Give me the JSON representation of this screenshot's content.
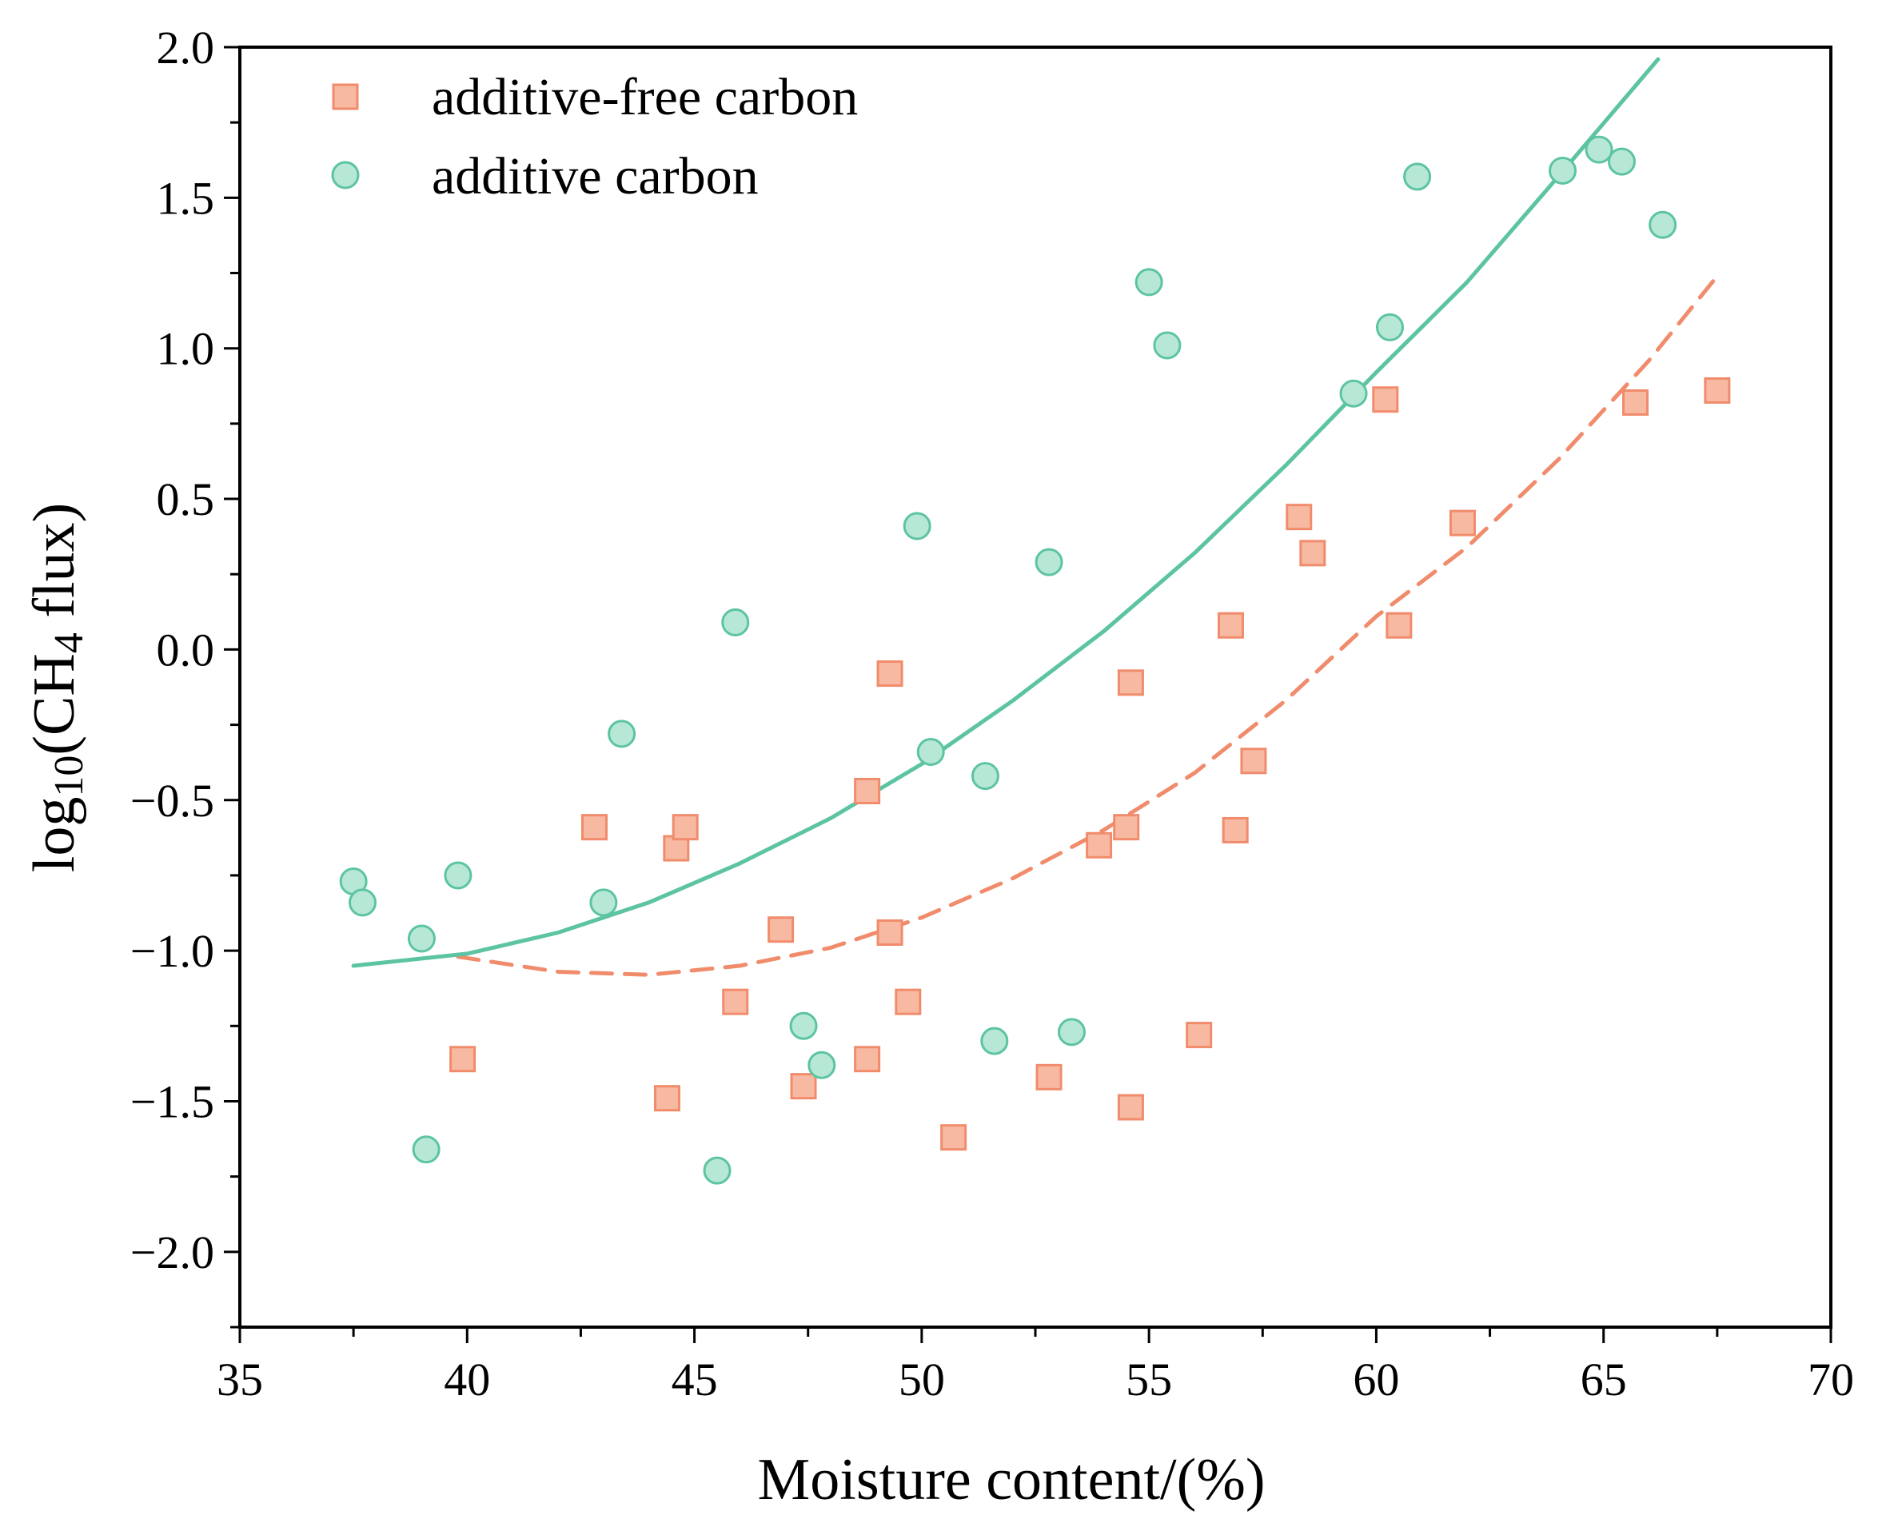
{
  "chart_data": {
    "type": "scatter",
    "title": "",
    "xlabel": "Moisture content/(%)",
    "ylabel": {
      "prefix": "log",
      "sub1": "10",
      "mid": "(CH",
      "sub2": "4",
      "suffix": " flux)"
    },
    "xlim": [
      35,
      70
    ],
    "ylim": [
      -2.25,
      2.0
    ],
    "xticks": [
      35,
      40,
      45,
      50,
      55,
      60,
      65,
      70
    ],
    "xtick_labels": [
      "35",
      "40",
      "45",
      "50",
      "55",
      "60",
      "65",
      "70"
    ],
    "yticks": [
      -2.0,
      -1.5,
      -1.0,
      -0.5,
      0.0,
      0.5,
      1.0,
      1.5,
      2.0
    ],
    "ytick_labels": [
      "−2.0",
      "−1.5",
      "−1.0",
      "−0.5",
      "0.0",
      "0.5",
      "1.0",
      "1.5",
      "2.0"
    ],
    "legend_position": "top-left",
    "colors": {
      "free_fill": "#f8b9a2",
      "free_stroke": "#f08c6c",
      "additive_fill": "#b7e8d6",
      "additive_stroke": "#5cc4a2"
    },
    "series": [
      {
        "name": "additive-free carbon",
        "marker": "square",
        "points": [
          [
            39.9,
            -1.36
          ],
          [
            42.8,
            -0.59
          ],
          [
            44.4,
            -1.49
          ],
          [
            44.6,
            -0.66
          ],
          [
            44.8,
            -0.59
          ],
          [
            45.9,
            -1.17
          ],
          [
            46.9,
            -0.93
          ],
          [
            47.4,
            -1.45
          ],
          [
            48.8,
            -0.47
          ],
          [
            48.8,
            -1.36
          ],
          [
            49.3,
            -0.08
          ],
          [
            49.3,
            -0.94
          ],
          [
            49.7,
            -1.17
          ],
          [
            50.7,
            -1.62
          ],
          [
            52.8,
            -1.42
          ],
          [
            53.9,
            -0.65
          ],
          [
            54.5,
            -0.59
          ],
          [
            54.6,
            -0.11
          ],
          [
            54.6,
            -1.52
          ],
          [
            56.1,
            -1.28
          ],
          [
            56.8,
            0.08
          ],
          [
            56.9,
            -0.6
          ],
          [
            57.3,
            -0.37
          ],
          [
            58.3,
            0.44
          ],
          [
            58.6,
            0.32
          ],
          [
            60.2,
            0.83
          ],
          [
            60.5,
            0.08
          ],
          [
            61.9,
            0.42
          ],
          [
            65.7,
            0.82
          ],
          [
            67.5,
            0.86
          ]
        ],
        "fit": {
          "style": "dashed",
          "points": [
            [
              39.8,
              -1.02
            ],
            [
              42,
              -1.07
            ],
            [
              44,
              -1.08
            ],
            [
              46,
              -1.05
            ],
            [
              48,
              -0.99
            ],
            [
              50,
              -0.89
            ],
            [
              52,
              -0.76
            ],
            [
              54,
              -0.6
            ],
            [
              56,
              -0.41
            ],
            [
              58,
              -0.17
            ],
            [
              60,
              0.11
            ],
            [
              62,
              0.34
            ],
            [
              64,
              0.63
            ],
            [
              66,
              0.96
            ],
            [
              67.5,
              1.24
            ]
          ]
        }
      },
      {
        "name": "additive carbon",
        "marker": "circle",
        "points": [
          [
            37.5,
            -0.77
          ],
          [
            37.7,
            -0.84
          ],
          [
            39.0,
            -0.96
          ],
          [
            39.1,
            -1.66
          ],
          [
            39.8,
            -0.75
          ],
          [
            43.0,
            -0.84
          ],
          [
            43.4,
            -0.28
          ],
          [
            45.5,
            -1.73
          ],
          [
            45.9,
            0.09
          ],
          [
            47.4,
            -1.25
          ],
          [
            47.8,
            -1.38
          ],
          [
            49.9,
            0.41
          ],
          [
            50.2,
            -0.34
          ],
          [
            51.4,
            -0.42
          ],
          [
            51.6,
            -1.3
          ],
          [
            52.8,
            0.29
          ],
          [
            53.3,
            -1.27
          ],
          [
            55.0,
            1.22
          ],
          [
            55.4,
            1.01
          ],
          [
            59.5,
            0.85
          ],
          [
            60.3,
            1.07
          ],
          [
            60.9,
            1.57
          ],
          [
            64.1,
            1.59
          ],
          [
            64.9,
            1.66
          ],
          [
            65.4,
            1.62
          ],
          [
            66.3,
            1.41
          ]
        ],
        "fit": {
          "style": "solid",
          "points": [
            [
              37.5,
              -1.05
            ],
            [
              40,
              -1.01
            ],
            [
              42,
              -0.94
            ],
            [
              44,
              -0.84
            ],
            [
              46,
              -0.71
            ],
            [
              48,
              -0.56
            ],
            [
              50,
              -0.38
            ],
            [
              52,
              -0.17
            ],
            [
              54,
              0.06
            ],
            [
              56,
              0.32
            ],
            [
              58,
              0.61
            ],
            [
              60,
              0.92
            ],
            [
              62,
              1.22
            ],
            [
              64,
              1.57
            ],
            [
              66.2,
              1.96
            ]
          ]
        }
      }
    ]
  }
}
